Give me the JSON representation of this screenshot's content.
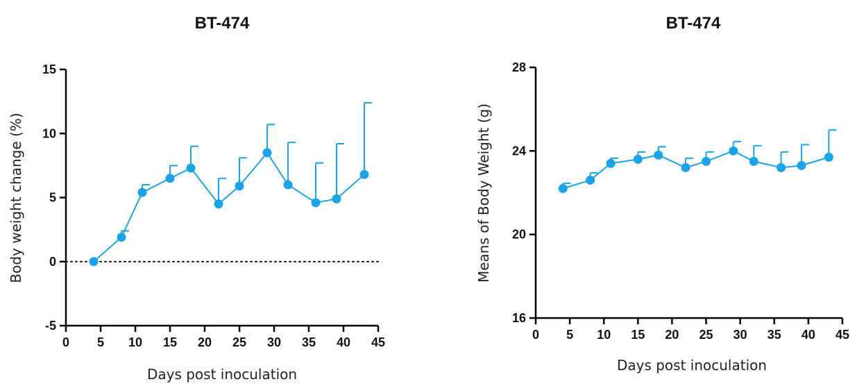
{
  "colors": {
    "series": "#1aa3e8",
    "axis": "#000000",
    "reference": "#000000"
  },
  "chart_data": [
    {
      "type": "line",
      "title": "BT-474",
      "xlabel": "Days post inoculation",
      "ylabel": "Body weight change (%)",
      "xlim": [
        0,
        45
      ],
      "ylim": [
        -5,
        15
      ],
      "xticks": [
        "0",
        "5",
        "10",
        "15",
        "20",
        "25",
        "30",
        "35",
        "40",
        "45"
      ],
      "yticks": [
        "-5",
        "0",
        "5",
        "10",
        "15"
      ],
      "grid": false,
      "reference_line": {
        "y": 0,
        "style": "dotted"
      },
      "series": [
        {
          "x": [
            4,
            8,
            11,
            15,
            18,
            22,
            25,
            29,
            32,
            36,
            39,
            43
          ],
          "y": [
            0,
            1.9,
            5.4,
            6.5,
            7.3,
            4.5,
            5.9,
            8.5,
            6.0,
            4.6,
            4.9,
            6.8
          ],
          "error_upper": [
            0,
            0.5,
            0.6,
            1.0,
            1.7,
            2.0,
            2.2,
            2.2,
            3.3,
            3.1,
            4.3,
            5.6
          ]
        }
      ]
    },
    {
      "type": "line",
      "title": "BT-474",
      "xlabel": "Days post inoculation",
      "ylabel": "Means of Body Weight (g)",
      "xlim": [
        0,
        45
      ],
      "ylim": [
        16,
        28
      ],
      "xticks": [
        "0",
        "5",
        "10",
        "15",
        "20",
        "25",
        "30",
        "35",
        "40",
        "45"
      ],
      "yticks": [
        "16",
        "20",
        "24",
        "28"
      ],
      "grid": false,
      "series": [
        {
          "x": [
            4,
            8,
            11,
            15,
            18,
            22,
            25,
            29,
            32,
            36,
            39,
            43
          ],
          "y": [
            22.2,
            22.6,
            23.4,
            23.6,
            23.8,
            23.2,
            23.5,
            24.0,
            23.5,
            23.2,
            23.3,
            23.7
          ],
          "error_upper": [
            0.25,
            0.35,
            0.25,
            0.35,
            0.4,
            0.45,
            0.45,
            0.45,
            0.75,
            0.75,
            1.0,
            1.3
          ]
        }
      ]
    }
  ]
}
